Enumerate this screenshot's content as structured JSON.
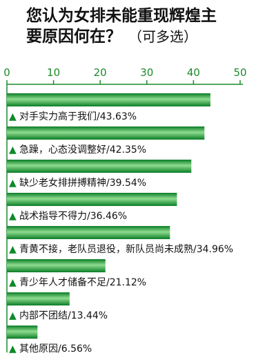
{
  "chart_data": {
    "type": "bar",
    "orientation": "horizontal",
    "title_lines": [
      "您认为女排未能重现辉煌主",
      "要原因何在？"
    ],
    "title_note": "（可多选）",
    "xlabel": "",
    "ylabel": "",
    "xlim": [
      0,
      50
    ],
    "ticks": [
      "0",
      "10",
      "20",
      "30",
      "40",
      "50"
    ],
    "categories": [
      "对手实力高于我们/43.63%",
      "急躁，心态没调整好/42.35%",
      "缺少老女排拼搏精神/39.54%",
      "战术指导不得力/36.46%",
      "青黄不接，老队员退役，新队员尚未成熟/34.96%",
      "青少年人才储备不足/21.12%",
      "内部不团结/13.44%",
      "其他原因/6.56%"
    ],
    "values": [
      43.63,
      42.35,
      39.54,
      36.46,
      34.96,
      21.12,
      13.44,
      6.56
    ],
    "bullet": "▲",
    "grid": false,
    "legend": "none",
    "colors": {
      "bar_dark": "#0a7d26",
      "bar_light": "#8fdc8f",
      "axis": "#1a8a2a",
      "bullet": "#0d8a2a"
    }
  }
}
